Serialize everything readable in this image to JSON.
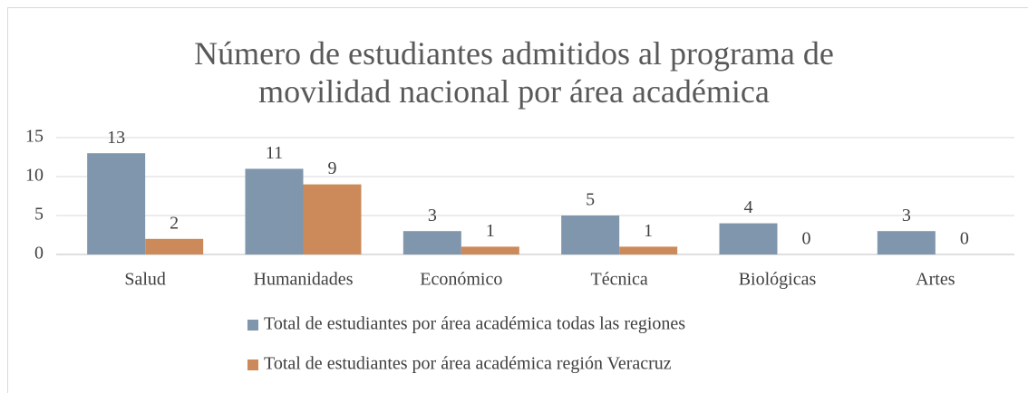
{
  "chart_data": {
    "type": "bar",
    "title": "Número de estudiantes admitidos al programa de movilidad nacional por área académica",
    "categories": [
      "Salud",
      "Humanidades",
      "Económico",
      "Técnica",
      "Biológicas",
      "Artes"
    ],
    "series": [
      {
        "name": "Total de estudiantes por área académica todas las regiones",
        "color": "#7f96ad",
        "values": [
          13,
          11,
          3,
          5,
          4,
          3
        ]
      },
      {
        "name": "Total de estudiantes por área académica región Veracruz",
        "color": "#cc8a5a",
        "values": [
          2,
          9,
          1,
          1,
          0,
          0
        ]
      }
    ],
    "ylim": [
      0,
      15
    ],
    "yticks": [
      0,
      5,
      10,
      15
    ],
    "grid": true,
    "legend": "bottom"
  }
}
